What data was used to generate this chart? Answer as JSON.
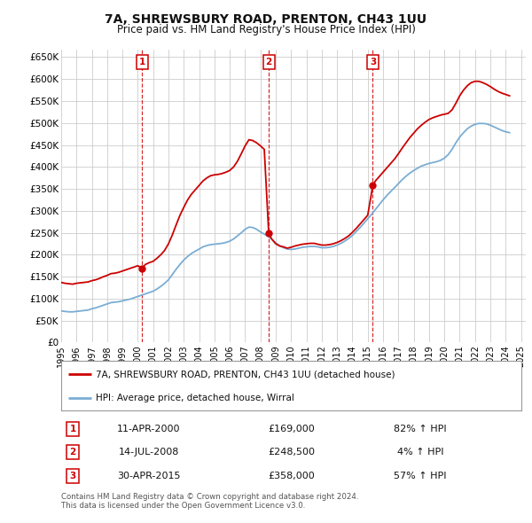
{
  "title": "7A, SHREWSBURY ROAD, PRENTON, CH43 1UU",
  "subtitle": "Price paid vs. HM Land Registry's House Price Index (HPI)",
  "ylabel_ticks": [
    "£0",
    "£50K",
    "£100K",
    "£150K",
    "£200K",
    "£250K",
    "£300K",
    "£350K",
    "£400K",
    "£450K",
    "£500K",
    "£550K",
    "£600K",
    "£650K"
  ],
  "ytick_values": [
    0,
    50000,
    100000,
    150000,
    200000,
    250000,
    300000,
    350000,
    400000,
    450000,
    500000,
    550000,
    600000,
    650000
  ],
  "ylim": [
    0,
    670000
  ],
  "transactions": [
    {
      "label": "1",
      "date": "11-APR-2000",
      "year": 2000.27,
      "price": 169000,
      "pct": "82%",
      "dir": "↑"
    },
    {
      "label": "2",
      "date": "14-JUL-2008",
      "year": 2008.54,
      "price": 248500,
      "pct": "4%",
      "dir": "↑"
    },
    {
      "label": "3",
      "date": "30-APR-2015",
      "year": 2015.33,
      "price": 358000,
      "pct": "57%",
      "dir": "↑"
    }
  ],
  "legend_entries": [
    {
      "label": "7A, SHREWSBURY ROAD, PRENTON, CH43 1UU (detached house)",
      "color": "#cc0000",
      "lw": 2.0
    },
    {
      "label": "HPI: Average price, detached house, Wirral",
      "color": "#7aadd4",
      "lw": 2.0
    }
  ],
  "footnote": "Contains HM Land Registry data © Crown copyright and database right 2024.\nThis data is licensed under the Open Government Licence v3.0.",
  "red_line_data": {
    "years": [
      1995.0,
      1995.25,
      1995.5,
      1995.75,
      1996.0,
      1996.25,
      1996.5,
      1996.75,
      1997.0,
      1997.25,
      1997.5,
      1997.75,
      1998.0,
      1998.25,
      1998.5,
      1998.75,
      1999.0,
      1999.25,
      1999.5,
      1999.75,
      2000.0,
      2000.27,
      2000.5,
      2000.75,
      2001.0,
      2001.25,
      2001.5,
      2001.75,
      2002.0,
      2002.25,
      2002.5,
      2002.75,
      2003.0,
      2003.25,
      2003.5,
      2003.75,
      2004.0,
      2004.25,
      2004.5,
      2004.75,
      2005.0,
      2005.25,
      2005.5,
      2005.75,
      2006.0,
      2006.25,
      2006.5,
      2006.75,
      2007.0,
      2007.25,
      2007.5,
      2007.75,
      2008.0,
      2008.25,
      2008.54,
      2008.75,
      2009.0,
      2009.25,
      2009.5,
      2009.75,
      2010.0,
      2010.25,
      2010.5,
      2010.75,
      2011.0,
      2011.25,
      2011.5,
      2011.75,
      2012.0,
      2012.25,
      2012.5,
      2012.75,
      2013.0,
      2013.25,
      2013.5,
      2013.75,
      2014.0,
      2014.25,
      2014.5,
      2014.75,
      2015.0,
      2015.33,
      2015.5,
      2015.75,
      2016.0,
      2016.25,
      2016.5,
      2016.75,
      2017.0,
      2017.25,
      2017.5,
      2017.75,
      2018.0,
      2018.25,
      2018.5,
      2018.75,
      2019.0,
      2019.25,
      2019.5,
      2019.75,
      2020.0,
      2020.25,
      2020.5,
      2020.75,
      2021.0,
      2021.25,
      2021.5,
      2021.75,
      2022.0,
      2022.25,
      2022.5,
      2022.75,
      2023.0,
      2023.25,
      2023.5,
      2023.75,
      2024.0,
      2024.25
    ],
    "values": [
      137000,
      135000,
      134000,
      133000,
      135000,
      136000,
      137000,
      138000,
      141000,
      143000,
      146000,
      150000,
      153000,
      157000,
      158000,
      160000,
      163000,
      166000,
      169000,
      172000,
      175000,
      169000,
      178000,
      182000,
      185000,
      192000,
      200000,
      210000,
      225000,
      245000,
      268000,
      290000,
      308000,
      325000,
      338000,
      348000,
      358000,
      368000,
      375000,
      380000,
      382000,
      383000,
      385000,
      388000,
      392000,
      400000,
      413000,
      430000,
      448000,
      462000,
      460000,
      455000,
      448000,
      440000,
      248500,
      235000,
      225000,
      220000,
      218000,
      215000,
      217000,
      220000,
      222000,
      224000,
      225000,
      226000,
      226000,
      224000,
      222000,
      222000,
      223000,
      225000,
      228000,
      232000,
      237000,
      243000,
      251000,
      260000,
      270000,
      280000,
      290000,
      358000,
      368000,
      378000,
      388000,
      398000,
      408000,
      418000,
      430000,
      443000,
      455000,
      467000,
      477000,
      487000,
      495000,
      502000,
      508000,
      512000,
      515000,
      518000,
      520000,
      522000,
      530000,
      545000,
      562000,
      575000,
      585000,
      592000,
      595000,
      595000,
      592000,
      588000,
      583000,
      577000,
      572000,
      568000,
      565000,
      562000
    ]
  },
  "blue_line_data": {
    "years": [
      1995.0,
      1995.25,
      1995.5,
      1995.75,
      1996.0,
      1996.25,
      1996.5,
      1996.75,
      1997.0,
      1997.25,
      1997.5,
      1997.75,
      1998.0,
      1998.25,
      1998.5,
      1998.75,
      1999.0,
      1999.25,
      1999.5,
      1999.75,
      2000.0,
      2000.25,
      2000.5,
      2000.75,
      2001.0,
      2001.25,
      2001.5,
      2001.75,
      2002.0,
      2002.25,
      2002.5,
      2002.75,
      2003.0,
      2003.25,
      2003.5,
      2003.75,
      2004.0,
      2004.25,
      2004.5,
      2004.75,
      2005.0,
      2005.25,
      2005.5,
      2005.75,
      2006.0,
      2006.25,
      2006.5,
      2006.75,
      2007.0,
      2007.25,
      2007.5,
      2007.75,
      2008.0,
      2008.25,
      2008.5,
      2008.75,
      2009.0,
      2009.25,
      2009.5,
      2009.75,
      2010.0,
      2010.25,
      2010.5,
      2010.75,
      2011.0,
      2011.25,
      2011.5,
      2011.75,
      2012.0,
      2012.25,
      2012.5,
      2012.75,
      2013.0,
      2013.25,
      2013.5,
      2013.75,
      2014.0,
      2014.25,
      2014.5,
      2014.75,
      2015.0,
      2015.25,
      2015.5,
      2015.75,
      2016.0,
      2016.25,
      2016.5,
      2016.75,
      2017.0,
      2017.25,
      2017.5,
      2017.75,
      2018.0,
      2018.25,
      2018.5,
      2018.75,
      2019.0,
      2019.25,
      2019.5,
      2019.75,
      2020.0,
      2020.25,
      2020.5,
      2020.75,
      2021.0,
      2021.25,
      2021.5,
      2021.75,
      2022.0,
      2022.25,
      2022.5,
      2022.75,
      2023.0,
      2023.25,
      2023.5,
      2023.75,
      2024.0,
      2024.25
    ],
    "values": [
      72000,
      71000,
      70000,
      70000,
      71000,
      72000,
      73000,
      74000,
      77000,
      79000,
      82000,
      85000,
      88000,
      91000,
      92000,
      93000,
      95000,
      97000,
      99000,
      102000,
      105000,
      108000,
      111000,
      114000,
      117000,
      122000,
      128000,
      135000,
      143000,
      155000,
      167000,
      178000,
      188000,
      196000,
      203000,
      208000,
      213000,
      218000,
      221000,
      223000,
      224000,
      225000,
      226000,
      228000,
      231000,
      236000,
      243000,
      250000,
      258000,
      263000,
      262000,
      258000,
      252000,
      247000,
      242000,
      235000,
      227000,
      221000,
      216000,
      213000,
      212000,
      213000,
      215000,
      217000,
      218000,
      219000,
      219000,
      218000,
      216000,
      216000,
      217000,
      219000,
      222000,
      226000,
      231000,
      237000,
      244000,
      253000,
      262000,
      272000,
      282000,
      292000,
      303000,
      314000,
      325000,
      335000,
      344000,
      353000,
      362000,
      371000,
      379000,
      386000,
      392000,
      397000,
      402000,
      405000,
      408000,
      410000,
      412000,
      415000,
      420000,
      428000,
      440000,
      455000,
      468000,
      478000,
      487000,
      493000,
      497000,
      499000,
      499000,
      498000,
      495000,
      491000,
      487000,
      483000,
      480000,
      478000
    ]
  },
  "bg_color": "#ffffff",
  "grid_color": "#cccccc",
  "marker_color": "#cc0000",
  "vline_color": "#cc0000"
}
